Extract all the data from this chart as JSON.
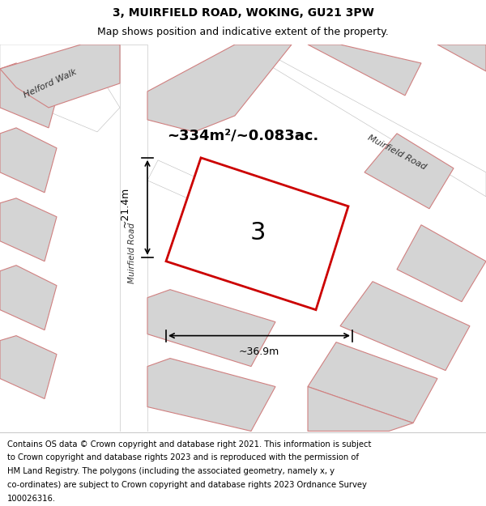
{
  "title": "3, MUIRFIELD ROAD, WOKING, GU21 3PW",
  "subtitle": "Map shows position and indicative extent of the property.",
  "area_text": "~334m²/~0.083ac.",
  "label_number": "3",
  "dim_width": "~36.9m",
  "dim_height": "~21.4m",
  "footer_lines": [
    "Contains OS data © Crown copyright and database right 2021. This information is subject",
    "to Crown copyright and database rights 2023 and is reproduced with the permission of",
    "HM Land Registry. The polygons (including the associated geometry, namely x, y",
    "co-ordinates) are subject to Crown copyright and database rights 2023 Ordnance Survey",
    "100026316."
  ],
  "bg_color": "#e8e8e8",
  "road_color": "#ffffff",
  "block_fill": "#d4d4d4",
  "block_edge": "#d08080",
  "highlight_fill": "#ffffff",
  "highlight_stroke": "#cc0000",
  "title_fontsize": 10,
  "subtitle_fontsize": 9,
  "footer_fontsize": 7.2
}
